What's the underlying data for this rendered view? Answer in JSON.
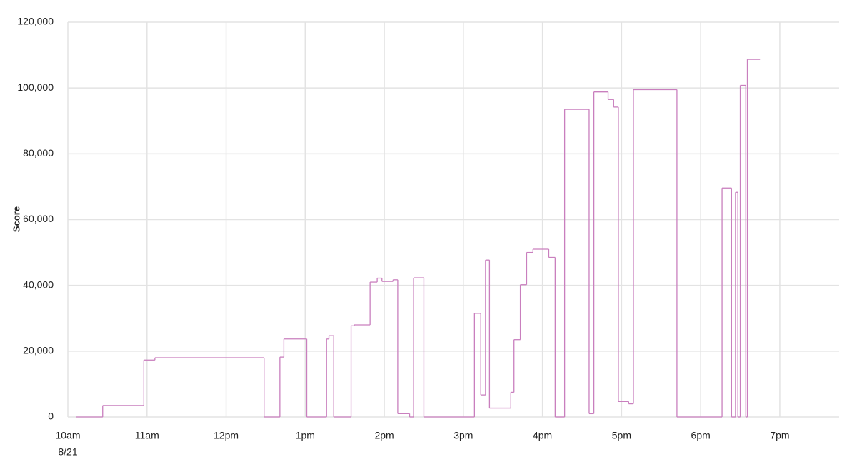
{
  "chart_data": {
    "type": "step-line",
    "y_label": "Score",
    "x_sublabel": "8/21",
    "x": [
      10.1,
      10.44,
      10.96,
      11.1,
      12.48,
      12.68,
      12.73,
      13.02,
      13.27,
      13.3,
      13.36,
      13.58,
      13.62,
      13.82,
      13.91,
      13.97,
      14.11,
      14.17,
      14.32,
      14.37,
      14.5,
      15.14,
      15.22,
      15.28,
      15.33,
      15.6,
      15.64,
      15.72,
      15.8,
      15.88,
      16.08,
      16.16,
      16.28,
      16.59,
      16.65,
      16.83,
      16.9,
      16.96,
      17.09,
      17.15,
      17.7,
      18.27,
      18.39,
      18.44,
      18.47,
      18.5,
      18.57,
      18.59,
      18.75
    ],
    "series": [
      {
        "name": "Score",
        "color": "#c97fbe",
        "values": [
          0,
          3500,
          17300,
          18000,
          0,
          18200,
          23700,
          0,
          23700,
          24700,
          0,
          27700,
          28000,
          41000,
          42200,
          41200,
          41700,
          1000,
          0,
          42300,
          0,
          31500,
          6700,
          47700,
          2700,
          7500,
          23500,
          40200,
          50000,
          51000,
          48500,
          0,
          93500,
          1000,
          98800,
          96500,
          94200,
          4700,
          4000,
          99500,
          0,
          69600,
          0,
          68300,
          0,
          100800,
          0,
          108700,
          108700
        ]
      }
    ],
    "xlim": [
      10,
      19.75
    ],
    "xticks": [
      {
        "value": 10,
        "label": "10am"
      },
      {
        "value": 11,
        "label": "11am"
      },
      {
        "value": 12,
        "label": "12pm"
      },
      {
        "value": 13,
        "label": "1pm"
      },
      {
        "value": 14,
        "label": "2pm"
      },
      {
        "value": 15,
        "label": "3pm"
      },
      {
        "value": 16,
        "label": "4pm"
      },
      {
        "value": 17,
        "label": "5pm"
      },
      {
        "value": 18,
        "label": "6pm"
      },
      {
        "value": 19,
        "label": "7pm"
      }
    ],
    "ylim": [
      0,
      120000
    ],
    "yticks": [
      0,
      {
        "value": 20000,
        "label": "20,000"
      },
      {
        "value": 40000,
        "label": "40,000"
      },
      {
        "value": 60000,
        "label": "60,000"
      },
      {
        "value": 80000,
        "label": "80,000"
      },
      {
        "value": 100000,
        "label": "100,000"
      },
      {
        "value": 120000,
        "label": "120,000"
      }
    ],
    "grid": true
  }
}
